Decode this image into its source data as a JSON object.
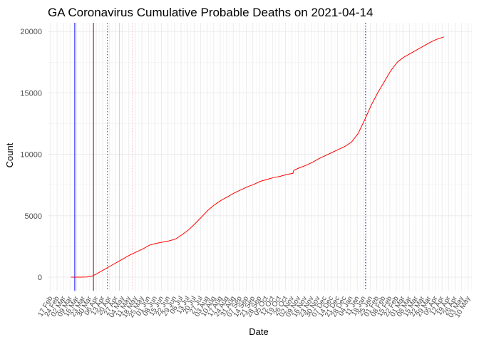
{
  "chart_data": {
    "type": "line",
    "title": "GA Coronavirus Cumulative Probable Deaths on 2021-04-14",
    "xlabel": "Date",
    "ylabel": "Count",
    "ylim": [
      -1100,
      20700
    ],
    "xlim": [
      "2020-02-14",
      "2021-05-14"
    ],
    "grid": true,
    "legend": "none",
    "line_color": "#ff0000",
    "y_ticks": [
      0,
      5000,
      10000,
      15000,
      20000
    ],
    "y_tick_labels": [
      "0",
      "5000",
      "10000",
      "15000",
      "20000"
    ],
    "x_tick_labels": [
      "17 Feb",
      "24 Feb",
      "02 Mar",
      "09 Mar",
      "16 Mar",
      "23 Mar",
      "30 Mar",
      "06 Apr",
      "13 Apr",
      "20 Apr",
      "27 Apr",
      "04 May",
      "11 May",
      "18 May",
      "25 May",
      "01 Jun",
      "08 Jun",
      "15 Jun",
      "22 Jun",
      "29 Jun",
      "06 Jul",
      "13 Jul",
      "20 Jul",
      "27 Jul",
      "03 Aug",
      "10 Aug",
      "17 Aug",
      "24 Aug",
      "31 Aug",
      "07 Sep",
      "14 Sep",
      "21 Sep",
      "28 Sep",
      "05 Oct",
      "12 Oct",
      "19 Oct",
      "26 Oct",
      "02 Nov",
      "09 Nov",
      "16 Nov",
      "23 Nov",
      "30 Nov",
      "07 Dec",
      "14 Dec",
      "21 Dec",
      "28 Dec",
      "04 Jan",
      "11 Jan",
      "18 Jan",
      "25 Jan",
      "01 Feb",
      "08 Feb",
      "15 Feb",
      "22 Feb",
      "01 Mar",
      "08 Mar",
      "15 Mar",
      "22 Mar",
      "29 Mar",
      "05 Apr",
      "12 Apr",
      "19 Apr",
      "26 Apr",
      "03 May",
      "10 May"
    ],
    "vlines": [
      {
        "x": "2020-03-14",
        "color": "#0000ff",
        "style": "solid"
      },
      {
        "x": "2020-04-03",
        "color": "#8b0000",
        "style": "solid"
      },
      {
        "x": "2020-04-18",
        "color": "#ff0000",
        "style": "dotted"
      },
      {
        "x": "2020-05-01",
        "color": "#ffb6c1",
        "style": "solid"
      },
      {
        "x": "2020-05-15",
        "color": "#ffb6c1",
        "style": "dotted"
      },
      {
        "x": "2021-01-20",
        "color": "#00008b",
        "style": "dotted"
      }
    ],
    "series": [
      {
        "x": [
          "2020-03-10",
          "2020-03-20",
          "2020-03-27",
          "2020-04-02",
          "2020-04-07",
          "2020-04-14",
          "2020-04-21",
          "2020-04-28",
          "2020-05-05",
          "2020-05-12",
          "2020-05-19",
          "2020-05-26",
          "2020-06-02",
          "2020-06-09",
          "2020-06-16",
          "2020-06-23",
          "2020-06-30",
          "2020-07-07",
          "2020-07-14",
          "2020-07-21",
          "2020-07-28",
          "2020-08-04",
          "2020-08-11",
          "2020-08-18",
          "2020-08-25",
          "2020-09-01",
          "2020-09-08",
          "2020-09-15",
          "2020-09-22",
          "2020-09-29",
          "2020-10-06",
          "2020-10-13",
          "2020-10-20",
          "2020-10-27",
          "2020-11-03",
          "2020-11-04",
          "2020-11-10",
          "2020-11-17",
          "2020-11-24",
          "2020-12-01",
          "2020-12-08",
          "2020-12-15",
          "2020-12-22",
          "2020-12-29",
          "2021-01-05",
          "2021-01-12",
          "2021-01-19",
          "2021-01-26",
          "2021-02-02",
          "2021-02-09",
          "2021-02-16",
          "2021-02-23",
          "2021-03-02",
          "2021-03-09",
          "2021-03-16",
          "2021-03-23",
          "2021-03-30",
          "2021-04-06",
          "2021-04-14"
        ],
        "values": [
          0,
          0,
          20,
          100,
          300,
          600,
          900,
          1200,
          1500,
          1800,
          2050,
          2300,
          2600,
          2750,
          2850,
          2950,
          3100,
          3450,
          3850,
          4350,
          4900,
          5450,
          5900,
          6250,
          6550,
          6850,
          7100,
          7350,
          7550,
          7800,
          7950,
          8100,
          8200,
          8350,
          8450,
          8700,
          8900,
          9100,
          9350,
          9650,
          9900,
          10150,
          10400,
          10650,
          11000,
          11700,
          12800,
          14000,
          15000,
          15900,
          16800,
          17500,
          17900,
          18200,
          18500,
          18800,
          19100,
          19350,
          19550
        ]
      }
    ]
  }
}
